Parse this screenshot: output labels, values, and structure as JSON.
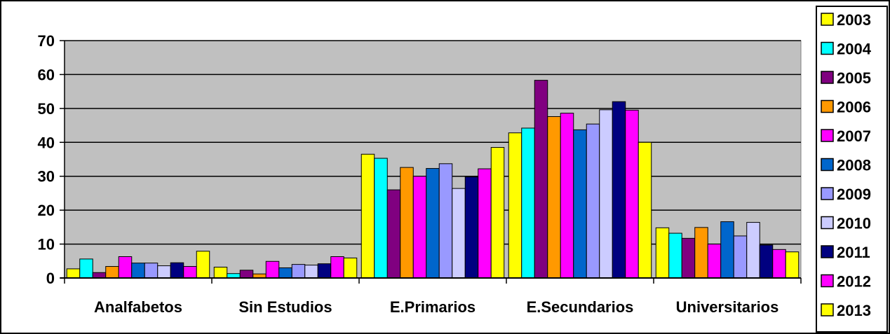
{
  "chart_data": {
    "type": "bar",
    "title": "",
    "xlabel": "",
    "ylabel": "",
    "ylim": [
      0,
      70
    ],
    "yticks": [
      0,
      10,
      20,
      30,
      40,
      50,
      60,
      70
    ],
    "grid": true,
    "legend_position": "right",
    "plot_background": "#C0C0C0",
    "categories": [
      "Analfabetos",
      "Sin Estudios",
      "E.Primarios",
      "E.Secundarios",
      "Universitarios"
    ],
    "series": [
      {
        "name": "2003",
        "color": "#FFFF00",
        "values": [
          2.7,
          3.2,
          36.5,
          42.8,
          14.8
        ]
      },
      {
        "name": "2004",
        "color": "#00FFFF",
        "values": [
          5.6,
          1.3,
          35.3,
          44.2,
          13.2
        ]
      },
      {
        "name": "2005",
        "color": "#800080",
        "values": [
          1.6,
          2.3,
          26.0,
          58.3,
          11.7
        ]
      },
      {
        "name": "2006",
        "color": "#FF9900",
        "values": [
          3.4,
          1.2,
          32.6,
          47.6,
          14.9
        ]
      },
      {
        "name": "2007",
        "color": "#FF00FF",
        "values": [
          6.3,
          4.9,
          30.0,
          48.6,
          10.0
        ]
      },
      {
        "name": "2008",
        "color": "#0066CC",
        "values": [
          4.4,
          3.0,
          32.3,
          43.7,
          16.6
        ]
      },
      {
        "name": "2009",
        "color": "#9999FF",
        "values": [
          4.4,
          4.0,
          33.7,
          45.4,
          12.4
        ]
      },
      {
        "name": "2010",
        "color": "#CCCCFF",
        "values": [
          3.6,
          3.8,
          26.4,
          49.6,
          16.4
        ]
      },
      {
        "name": "2011",
        "color": "#000080",
        "values": [
          4.5,
          4.2,
          29.8,
          52.0,
          9.7
        ]
      },
      {
        "name": "2012",
        "color": "#FF00FF",
        "values": [
          3.4,
          6.3,
          32.2,
          49.5,
          8.4
        ]
      },
      {
        "name": "2013",
        "color": "#FFFF00",
        "values": [
          7.9,
          5.9,
          38.5,
          40.0,
          7.7
        ]
      }
    ]
  }
}
